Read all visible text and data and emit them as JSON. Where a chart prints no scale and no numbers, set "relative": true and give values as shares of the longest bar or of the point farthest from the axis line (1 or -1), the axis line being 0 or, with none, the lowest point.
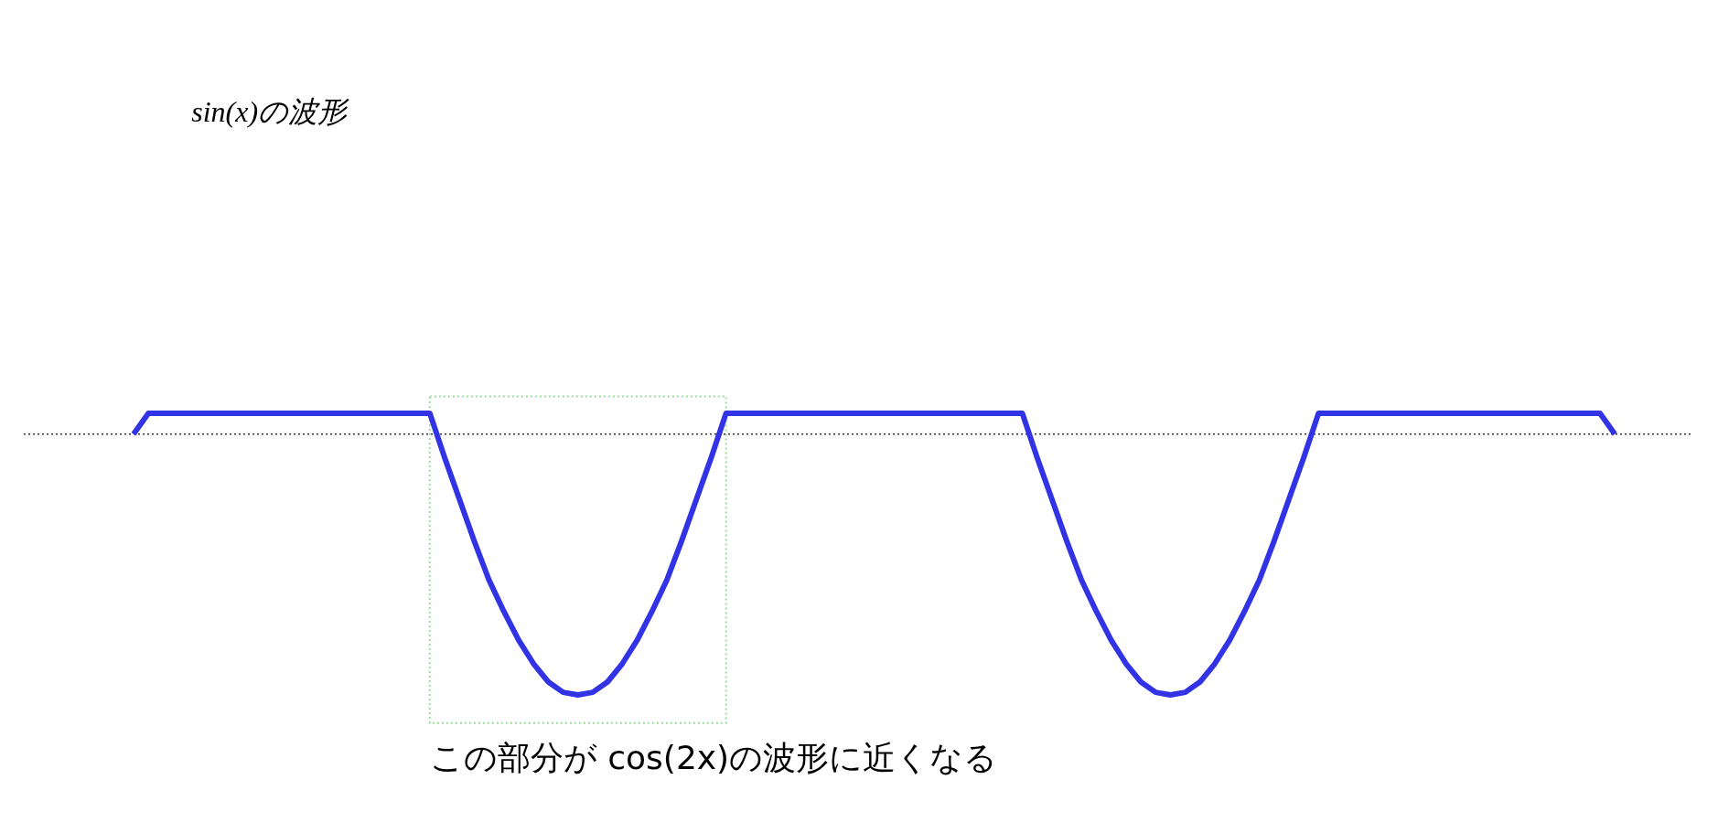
{
  "chart_data": {
    "type": "line",
    "relative": true,
    "title": "sin(x)の波形",
    "categories": [
      null,
      null,
      null,
      null,
      null,
      null,
      null,
      null,
      null,
      null,
      null,
      null,
      null,
      null,
      null,
      null,
      null,
      null,
      null,
      null,
      null,
      null,
      null,
      null,
      null,
      null,
      null,
      null,
      null,
      null,
      null,
      null,
      null,
      null,
      null,
      null,
      null,
      null,
      null,
      null,
      null,
      null,
      null,
      null,
      null,
      null,
      null,
      null,
      null,
      null,
      null,
      null,
      null,
      null,
      null,
      null,
      null,
      null,
      null,
      null,
      null,
      null,
      null,
      null,
      null,
      null,
      null,
      null,
      null,
      null,
      null,
      null,
      null,
      null,
      null,
      null,
      null,
      null,
      null,
      null,
      null,
      null,
      null,
      null,
      null,
      null,
      null,
      null,
      null,
      null,
      null,
      null,
      null,
      null,
      null,
      null,
      null,
      null,
      null,
      null,
      null
    ],
    "series": [
      {
        "color": "#3333e6",
        "values": [
          0,
          0.08,
          0.08,
          0.08,
          0.08,
          0.08,
          0.08,
          0.08,
          0.08,
          0.08,
          0.08,
          0.08,
          0.08,
          0.08,
          0.08,
          0.08,
          0.08,
          0.08,
          0.08,
          0.08,
          0.08,
          -0.09,
          -0.25,
          -0.41,
          -0.56,
          -0.68,
          -0.79,
          -0.88,
          -0.95,
          -0.99,
          -1,
          -0.99,
          -0.95,
          -0.88,
          -0.79,
          -0.68,
          -0.56,
          -0.41,
          -0.25,
          -0.09,
          0.08,
          0.08,
          0.08,
          0.08,
          0.08,
          0.08,
          0.08,
          0.08,
          0.08,
          0.08,
          0.08,
          0.08,
          0.08,
          0.08,
          0.08,
          0.08,
          0.08,
          0.08,
          0.08,
          0.08,
          0.08,
          -0.09,
          -0.25,
          -0.41,
          -0.56,
          -0.68,
          -0.79,
          -0.88,
          -0.95,
          -0.99,
          -1,
          -0.99,
          -0.95,
          -0.88,
          -0.79,
          -0.68,
          -0.56,
          -0.41,
          -0.25,
          -0.09,
          0.08,
          0.08,
          0.08,
          0.08,
          0.08,
          0.08,
          0.08,
          0.08,
          0.08,
          0.08,
          0.08,
          0.08,
          0.08,
          0.08,
          0.08,
          0.08,
          0.08,
          0.08,
          0.08,
          0.08,
          0
        ]
      }
    ],
    "ref_lines": [
      {
        "axis": "y",
        "value": 0,
        "color": "#333333",
        "line_style": "dotted"
      }
    ],
    "annotations": [
      "この部分が cos(2x)の波形に近くなる"
    ],
    "tick_labels": false,
    "marker": "none",
    "line_style": "solid"
  }
}
